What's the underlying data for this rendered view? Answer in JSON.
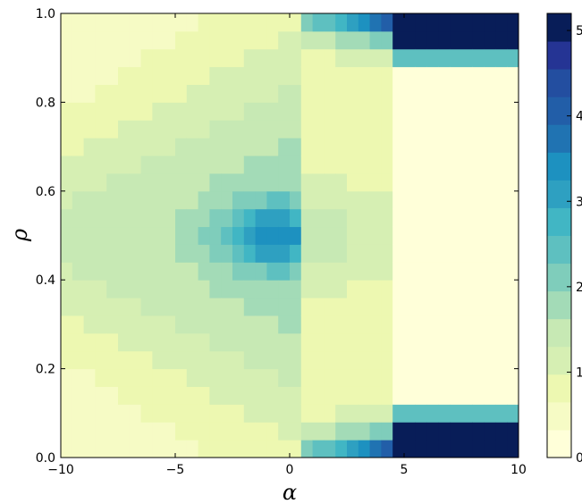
{
  "chart_data": {
    "type": "heatmap",
    "title": "",
    "xlabel": "α",
    "ylabel": "ρ",
    "xlim": [
      -10,
      10
    ],
    "ylim": [
      0.0,
      1.0
    ],
    "x_ticks": [
      "−10",
      "−5",
      "0",
      "5",
      "10"
    ],
    "x_tick_values": [
      -10,
      -5,
      0,
      5,
      10
    ],
    "y_ticks": [
      "0.0",
      "0.2",
      "0.4",
      "0.6",
      "0.8",
      "1.0"
    ],
    "y_tick_values": [
      0.0,
      0.2,
      0.4,
      0.6,
      0.8,
      1.0
    ],
    "colorbar": {
      "ticks": [
        "0",
        "1",
        "2",
        "3",
        "4",
        "5"
      ],
      "tick_values": [
        0,
        1,
        2,
        3,
        4,
        5
      ],
      "range": [
        0,
        5.2
      ],
      "levels": 16,
      "colormap": "YlGnBu",
      "colors": [
        "#ffffd9",
        "#f6fbc5",
        "#edf8b1",
        "#d6efb3",
        "#c7e9b4",
        "#a3dbb7",
        "#7fcdbb",
        "#5ec0c0",
        "#41b6c4",
        "#2ea0c1",
        "#1d91c0",
        "#2073b2",
        "#225ea8",
        "#234ea0",
        "#253494",
        "#081d58"
      ]
    },
    "grid": {
      "x_cells": 40,
      "y_cells": 25,
      "x_cell_width": 0.5,
      "y_cell_height": 0.04
    },
    "description_values": {
      "center_peak": {
        "alpha": -0.5,
        "rho": 0.5,
        "value": 3.5
      },
      "upper_right_band_max": 5.2,
      "lower_right_band_max": 5.2
    }
  }
}
